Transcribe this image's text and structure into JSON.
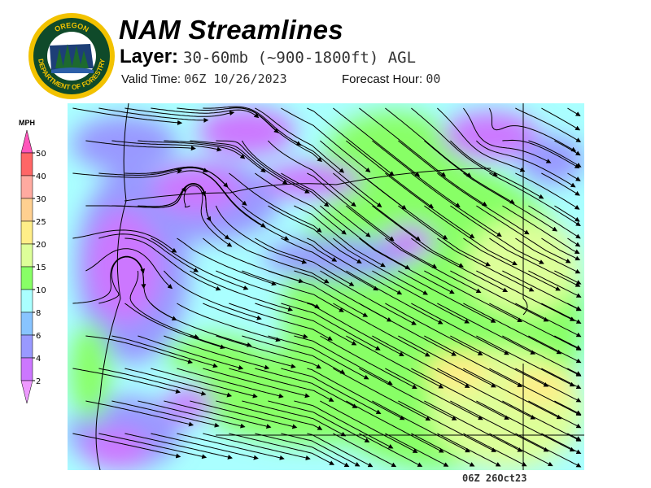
{
  "header": {
    "title": "NAM Streamlines",
    "layer_label": "Layer:",
    "layer_value": "30-60mb (~900-1800ft) AGL",
    "valid_label": "Valid Time:",
    "valid_value": "06Z 10/26/2023",
    "forecast_label": "Forecast Hour:",
    "forecast_value": "00"
  },
  "logo": {
    "text_top": "OREGON",
    "text_bottom": "DEPARTMENT OF FORESTRY",
    "colors": {
      "ring": "#f2c200",
      "field": "#0f4a2a"
    }
  },
  "legend": {
    "unit": "MPH",
    "labels": [
      "50",
      "40",
      "30",
      "25",
      "20",
      "15",
      "10",
      "8",
      "6",
      "4",
      "2"
    ],
    "colors": [
      "#ff55bb",
      "#ff6666",
      "#ffaaa0",
      "#ffd090",
      "#ffee88",
      "#ddff99",
      "#88ff66",
      "#aaffff",
      "#88c4ff",
      "#9999ff",
      "#cc77ff",
      "#ee99ff"
    ]
  },
  "map": {
    "type": "wind streamlines over Oregon",
    "stamp": "06Z 26Oct23"
  }
}
